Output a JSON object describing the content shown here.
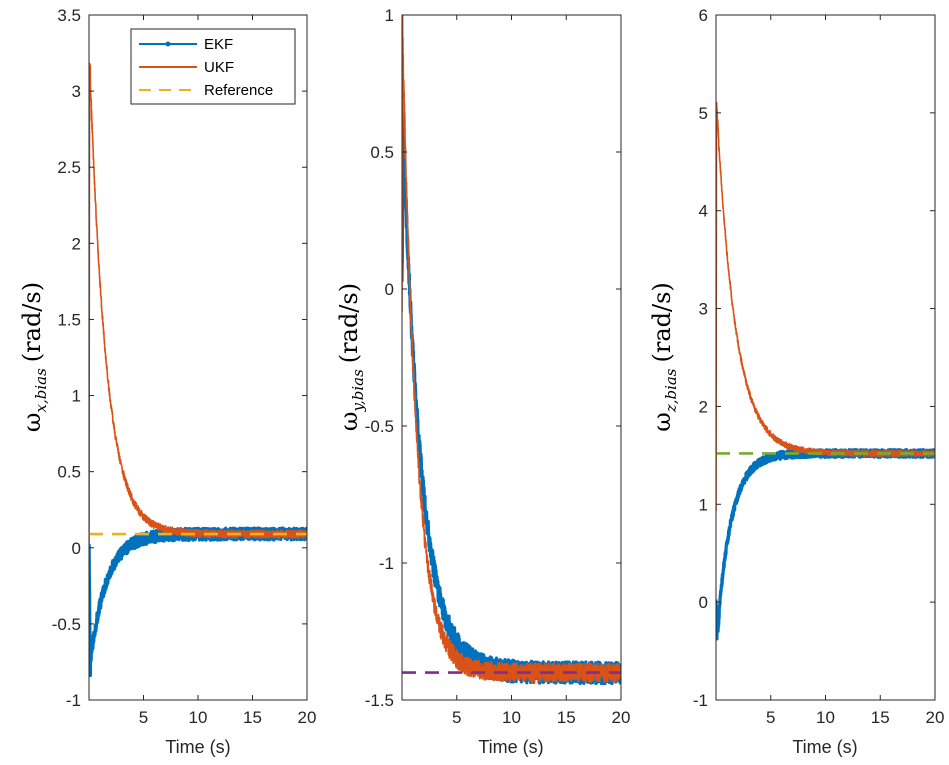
{
  "colors": {
    "ekf": "#0072BD",
    "ukf": "#D95319",
    "reference_panel1": "#EDB120",
    "reference_panel2": "#7E2F8E",
    "reference_panel3": "#77AC30",
    "axes": "#262626"
  },
  "legend": {
    "entries": [
      "EKF",
      "UKF",
      "Reference"
    ]
  },
  "chart_data": [
    {
      "type": "line",
      "title": "",
      "xlabel": "Time (s)",
      "ylabel_symbol": "ω",
      "ylabel_subscript": "x,bias",
      "ylabel_units": "(rad/s)",
      "xlim": [
        0,
        20
      ],
      "ylim": [
        -1,
        3.5
      ],
      "xticks": [
        5,
        10,
        15,
        20
      ],
      "yticks": [
        -1,
        -0.5,
        0,
        0.5,
        1,
        1.5,
        2,
        2.5,
        3,
        3.5
      ],
      "ytick_labels": [
        "-1",
        "-0.5",
        "0",
        "0.5",
        "1",
        "1.5",
        "2",
        "2.5",
        "3",
        "3.5"
      ],
      "reference": 0.09,
      "series": [
        {
          "name": "EKF",
          "start": 0.0,
          "min": -0.75,
          "min_t": 0.12,
          "tau": 1.5,
          "noise": 0.04
        },
        {
          "name": "UKF",
          "start": 0.0,
          "peak": 3.22,
          "peak_t": 0.05,
          "tau": 1.5,
          "noise": 0.025
        },
        {
          "name": "Reference",
          "value": 0.09,
          "dashed": true
        }
      ]
    },
    {
      "type": "line",
      "title": "",
      "xlabel": "Time (s)",
      "ylabel_symbol": "ω",
      "ylabel_subscript": "y,bias",
      "ylabel_units": "(rad/s)",
      "xlim": [
        0,
        20
      ],
      "ylim": [
        -1.5,
        1
      ],
      "xticks": [
        5,
        10,
        15,
        20
      ],
      "yticks": [
        -1.5,
        -1,
        -0.5,
        0,
        0.5,
        1
      ],
      "ytick_labels": [
        "-1.5",
        "-1",
        "-0.5",
        "0",
        "0.5",
        "1"
      ],
      "reference": -1.4,
      "series": [
        {
          "name": "EKF",
          "start": 0.0,
          "peak": 0.58,
          "peak_t": 0.1,
          "tau": 1.7,
          "noise": 0.04
        },
        {
          "name": "UKF",
          "start": 0.0,
          "peak": 0.95,
          "peak_t": 0.04,
          "tau": 1.3,
          "noise": 0.035
        },
        {
          "name": "Reference",
          "value": -1.4,
          "dashed": true
        }
      ]
    },
    {
      "type": "line",
      "title": "",
      "xlabel": "Time (s)",
      "ylabel_symbol": "ω",
      "ylabel_subscript": "z,bias",
      "ylabel_units": "(rad/s)",
      "xlim": [
        0,
        20
      ],
      "ylim": [
        -1,
        6
      ],
      "xticks": [
        5,
        10,
        15,
        20
      ],
      "yticks": [
        -1,
        0,
        1,
        2,
        3,
        4,
        5,
        6
      ],
      "ytick_labels": [
        "-1",
        "0",
        "1",
        "2",
        "3",
        "4",
        "5",
        "6"
      ],
      "reference": 1.52,
      "series": [
        {
          "name": "EKF",
          "start": 0.0,
          "min": -0.33,
          "min_t": 0.1,
          "tau": 1.3,
          "noise": 0.04
        },
        {
          "name": "UKF",
          "start": 1.0,
          "peak": 5.1,
          "peak_t": 0.05,
          "tau": 1.7,
          "noise": 0.03
        },
        {
          "name": "Reference",
          "value": 1.52,
          "dashed": true
        }
      ]
    }
  ]
}
